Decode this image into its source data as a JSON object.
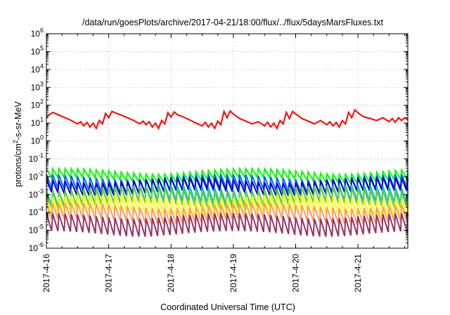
{
  "chart_data": {
    "type": "line",
    "title": "/data/run/goesPlots/archive/2017-04-21/18:00/flux/../flux/5daysMarsFluxes.txt",
    "xlabel": "Coordinated Universal Time (UTC)",
    "ylabel": "protons/cm2-s-sr-MeV",
    "ylabel_parts": {
      "pre": "protons/cm",
      "sup": "2",
      "post": "-s-sr-MeV"
    },
    "yscale": "log",
    "ylim_exponents": [
      -6,
      6
    ],
    "ytick_exponents": [
      -6,
      -5,
      -4,
      -3,
      -2,
      -1,
      0,
      1,
      2,
      3,
      4,
      5,
      6
    ],
    "ytick_base": "10",
    "xlim_days": [
      0,
      5.8
    ],
    "xtick_labels": [
      "2017-4-16",
      "2017-4-17",
      "2017-4-18",
      "2017-4-19",
      "2017-4-20",
      "2017-4-21"
    ],
    "grid": true,
    "series": [
      {
        "color": "#ff0000",
        "x": [
          0,
          0.1,
          0.2,
          0.3,
          0.4,
          0.5,
          0.55,
          0.6,
          0.65,
          0.7,
          0.75,
          0.8,
          0.85,
          0.9,
          0.95,
          1.0,
          1.05,
          1.1,
          1.2,
          1.3,
          1.4,
          1.5,
          1.55,
          1.6,
          1.65,
          1.7,
          1.75,
          1.8,
          1.85,
          1.9,
          1.95,
          2.0,
          2.05,
          2.1,
          2.2,
          2.3,
          2.4,
          2.5,
          2.55,
          2.6,
          2.65,
          2.7,
          2.75,
          2.8,
          2.85,
          2.9,
          2.95,
          3.0,
          3.05,
          3.1,
          3.2,
          3.3,
          3.4,
          3.5,
          3.55,
          3.6,
          3.65,
          3.7,
          3.75,
          3.8,
          3.85,
          3.9,
          3.95,
          4.0,
          4.05,
          4.1,
          4.2,
          4.3,
          4.4,
          4.5,
          4.55,
          4.6,
          4.65,
          4.7,
          4.75,
          4.8,
          4.85,
          4.9,
          4.95,
          5.0,
          5.05,
          5.1,
          5.2,
          5.3,
          5.4,
          5.5,
          5.55,
          5.6,
          5.65,
          5.7,
          5.75,
          5.8
        ],
        "y": [
          22,
          40,
          28,
          20,
          14,
          9,
          12,
          7,
          11,
          6,
          10,
          5,
          14,
          9,
          35,
          20,
          45,
          38,
          28,
          20,
          14,
          9,
          13,
          8,
          12,
          6,
          10,
          5,
          14,
          9,
          38,
          22,
          42,
          30,
          22,
          15,
          10,
          7,
          11,
          6,
          10,
          5,
          13,
          8,
          45,
          20,
          48,
          32,
          24,
          18,
          13,
          9,
          12,
          7,
          11,
          6,
          10,
          5,
          14,
          9,
          40,
          18,
          45,
          32,
          25,
          18,
          13,
          9,
          14,
          8,
          12,
          7,
          11,
          6,
          14,
          9,
          40,
          20,
          55,
          38,
          28,
          22,
          18,
          14,
          20,
          12,
          18,
          11,
          20,
          14,
          20,
          15
        ]
      },
      {
        "color": "#00ff00",
        "peak": 0.025,
        "trough": 0.008
      },
      {
        "color": "#0066ff",
        "peak": 0.012,
        "trough": 0.002
      },
      {
        "color": "#0000cc",
        "peak": 0.008,
        "trough": 0.0015
      },
      {
        "color": "#00cccc",
        "peak": 0.003,
        "trough": 0.0004
      },
      {
        "color": "#66cc33",
        "peak": 0.0025,
        "trough": 0.0003
      },
      {
        "color": "#ffff00",
        "peak": 0.0008,
        "trough": 0.0001
      },
      {
        "color": "#ff9966",
        "peak": 0.0003,
        "trough": 4e-05
      },
      {
        "color": "#993366",
        "peak": 8e-05,
        "trough": 8e-06
      }
    ],
    "cycle_days": 0.1
  }
}
